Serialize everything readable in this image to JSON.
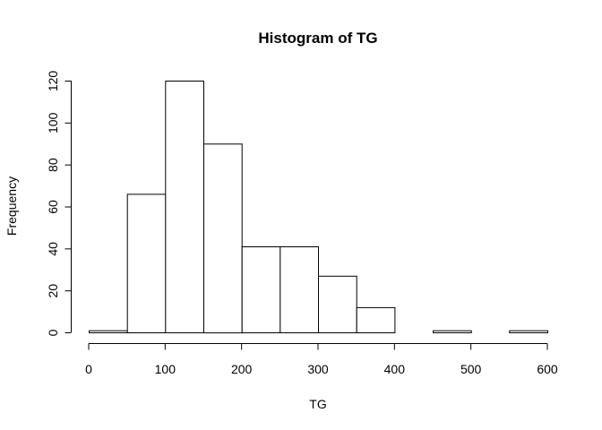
{
  "chart_data": {
    "type": "bar",
    "title": "Histogram of TG",
    "xlabel": "TG",
    "ylabel": "Frequency",
    "bin_edges": [
      0,
      50,
      100,
      150,
      200,
      250,
      300,
      350,
      400,
      450,
      500,
      550,
      600
    ],
    "values": [
      1,
      66,
      120,
      90,
      41,
      41,
      27,
      12,
      0,
      1,
      0,
      1
    ],
    "xlim": [
      0,
      600
    ],
    "ylim": [
      0,
      120
    ],
    "xticks": [
      0,
      100,
      200,
      300,
      400,
      500,
      600
    ],
    "yticks": [
      0,
      20,
      40,
      60,
      80,
      100,
      120
    ],
    "grid": false,
    "legend": "none"
  }
}
